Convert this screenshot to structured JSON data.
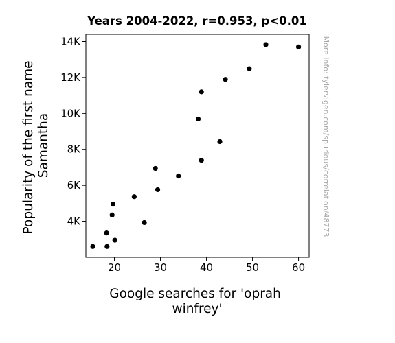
{
  "chart_data": {
    "type": "scatter",
    "title": "Years 2004-2022, r=0.953, p<0.01",
    "xlabel_lines": [
      "Google searches for 'oprah",
      "winfrey'"
    ],
    "ylabel_lines": [
      "Popularity of the first name",
      "Samantha"
    ],
    "watermark": "More info: tylervigen.com/spurious/correlation/48773",
    "xlim": [
      13.8,
      62.3
    ],
    "ylim": [
      2000,
      14400
    ],
    "xticks": [
      20,
      30,
      40,
      50,
      60
    ],
    "xtick_labels": [
      "20",
      "30",
      "40",
      "50",
      "60"
    ],
    "yticks": [
      4000,
      6000,
      8000,
      10000,
      12000,
      14000
    ],
    "ytick_labels": [
      "4K",
      "6K",
      "8K",
      "10K",
      "12K",
      "14K"
    ],
    "grid": false,
    "point_color": "#000000",
    "points": [
      {
        "x": 15.3,
        "y": 2600
      },
      {
        "x": 18.4,
        "y": 2600
      },
      {
        "x": 18.3,
        "y": 3350
      },
      {
        "x": 20.1,
        "y": 2950
      },
      {
        "x": 19.5,
        "y": 4350
      },
      {
        "x": 19.7,
        "y": 4950
      },
      {
        "x": 24.3,
        "y": 5370
      },
      {
        "x": 26.5,
        "y": 3930
      },
      {
        "x": 28.9,
        "y": 6940
      },
      {
        "x": 29.4,
        "y": 5760
      },
      {
        "x": 33.9,
        "y": 6520
      },
      {
        "x": 38.2,
        "y": 9690
      },
      {
        "x": 38.9,
        "y": 7390
      },
      {
        "x": 38.9,
        "y": 11200
      },
      {
        "x": 42.9,
        "y": 8430
      },
      {
        "x": 44.1,
        "y": 11890
      },
      {
        "x": 49.3,
        "y": 12490
      },
      {
        "x": 52.9,
        "y": 13830
      },
      {
        "x": 60.0,
        "y": 13700
      }
    ]
  }
}
